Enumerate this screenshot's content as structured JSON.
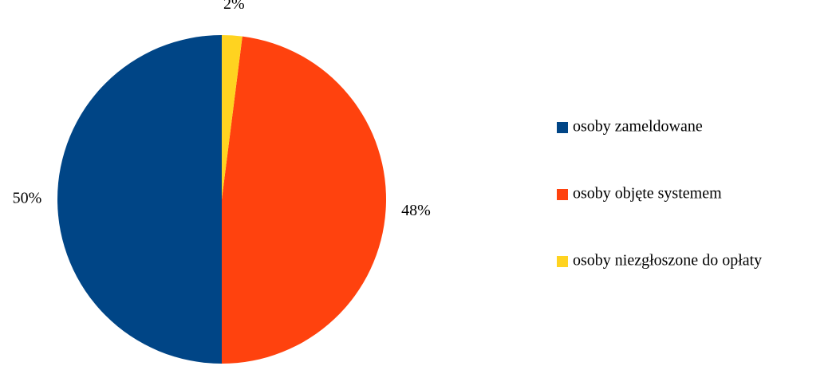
{
  "chart_data": {
    "type": "pie",
    "categories": [
      "osoby zameldowane",
      "osoby objęte systemem",
      "osoby niezgłoszone do opłaty"
    ],
    "values": [
      50,
      48,
      2
    ],
    "value_labels": [
      "50%",
      "48%",
      "2%"
    ],
    "colors": [
      "#004586",
      "#ff420e",
      "#ffd320"
    ],
    "legend": "right"
  }
}
